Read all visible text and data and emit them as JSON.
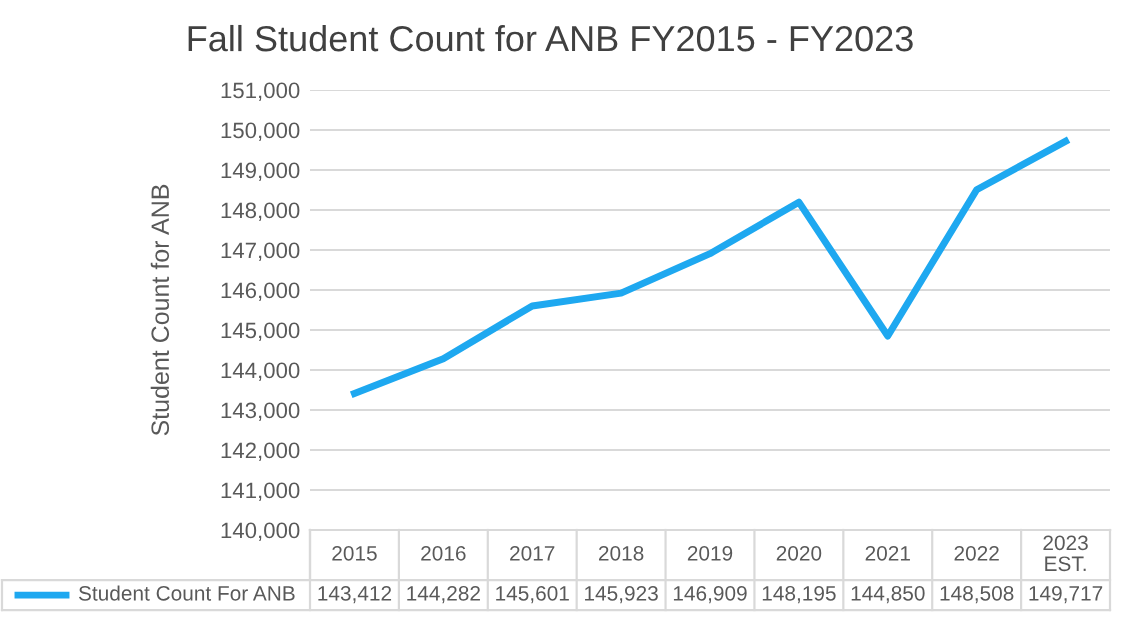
{
  "chart_data": {
    "type": "line",
    "title": "Fall Student Count for ANB FY2015 - FY2023",
    "ylabel": "Student Count for ANB",
    "categories": [
      "2015",
      "2016",
      "2017",
      "2018",
      "2019",
      "2020",
      "2021",
      "2022",
      "2023\nEST."
    ],
    "series": [
      {
        "name": "Student Count For ANB",
        "color": "#1ea8f0",
        "values": [
          143412,
          144282,
          145601,
          145923,
          146909,
          148195,
          144850,
          148508,
          149717
        ],
        "value_labels": [
          "143,412",
          "144,282",
          "145,601",
          "145,923",
          "146,909",
          "148,195",
          "144,850",
          "148,508",
          "149,717"
        ]
      }
    ],
    "ylim": [
      140000,
      151000
    ],
    "yticks": [
      {
        "value": 140000,
        "label": "140,000"
      },
      {
        "value": 141000,
        "label": "141,000"
      },
      {
        "value": 142000,
        "label": "142,000"
      },
      {
        "value": 143000,
        "label": "143,000"
      },
      {
        "value": 144000,
        "label": "144,000"
      },
      {
        "value": 145000,
        "label": "145,000"
      },
      {
        "value": 146000,
        "label": "146,000"
      },
      {
        "value": 147000,
        "label": "147,000"
      },
      {
        "value": 148000,
        "label": "148,000"
      },
      {
        "value": 149000,
        "label": "149,000"
      },
      {
        "value": 150000,
        "label": "150,000"
      },
      {
        "value": 151000,
        "label": "151,000"
      }
    ],
    "grid": "y",
    "marker": "none",
    "line_style": "solid"
  }
}
